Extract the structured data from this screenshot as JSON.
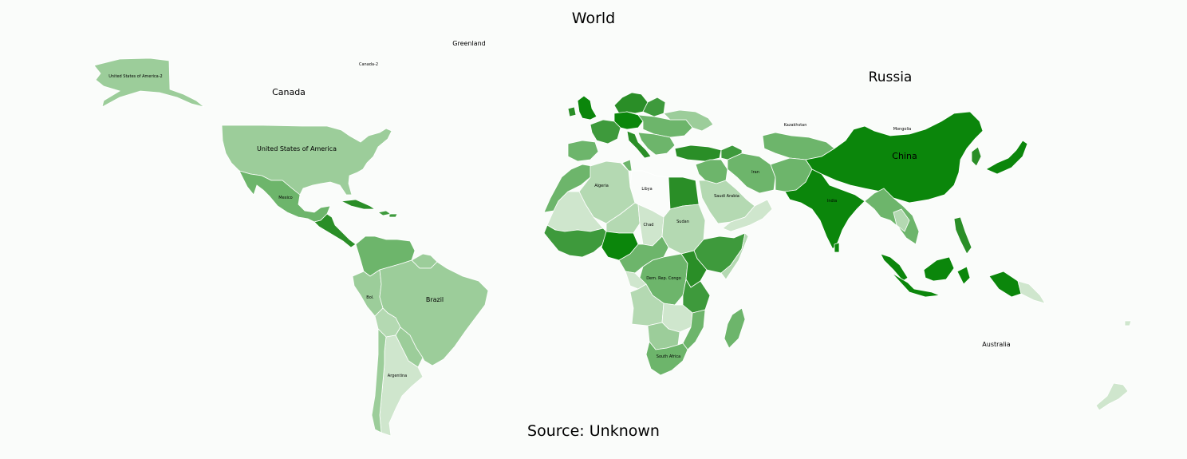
{
  "title": "World",
  "source": "Source: Unknown",
  "colors": {
    "background": "#fafcfa",
    "c1": "#cfe6cd",
    "c2": "#b4d9b2",
    "c3": "#9ccd9a",
    "c4": "#6db56b",
    "c5": "#3e9a3c",
    "c6": "#2a8e27",
    "c7": "#0b860b"
  },
  "labels": {
    "greenland": "Greenland",
    "canada": "Canada",
    "canada2": "Canada-2",
    "usa": "United States of America",
    "usa2": "United States of America-2",
    "mexico": "Mexico",
    "brazil": "Brazil",
    "bolivia": "Bol.",
    "argentina": "Argentina",
    "russia": "Russia",
    "kazakhstan": "Kazakhstan",
    "mongolia": "Mongolia",
    "china": "China",
    "india": "India",
    "iran": "Iran",
    "saudi": "Saudi Arabia",
    "algeria": "Algeria",
    "libya": "Libya",
    "chad": "Chad",
    "sudan": "Sudan",
    "drc": "Dem. Rep. Congo",
    "south_africa": "South Africa",
    "australia": "Australia"
  }
}
